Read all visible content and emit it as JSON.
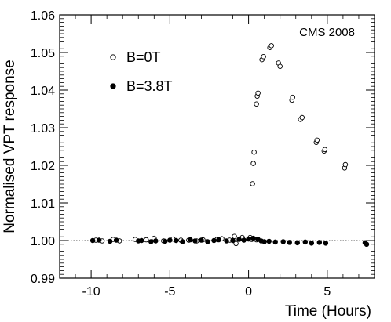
{
  "chart_data": {
    "type": "scatter",
    "title": "",
    "xlabel": "Time (Hours)",
    "ylabel": "Normalised VPT response",
    "annotation": "CMS 2008",
    "xlim": [
      -12,
      8
    ],
    "ylim": [
      0.99,
      1.06
    ],
    "xticks": [
      -10,
      -5,
      0,
      5
    ],
    "xtick_labels": [
      "-10",
      "-5",
      "0",
      "5"
    ],
    "yticks": [
      0.99,
      1.0,
      1.01,
      1.02,
      1.03,
      1.04,
      1.05,
      1.06
    ],
    "ytick_labels": [
      "0.99",
      "1.00",
      "1.01",
      "1.02",
      "1.03",
      "1.04",
      "1.05",
      "1.06"
    ],
    "reference_line": 1.0,
    "grid": false,
    "legend_position": "upper-left",
    "series": [
      {
        "name": "B=0T",
        "marker": "open-circle",
        "points": [
          [
            -9.7,
            1.0001
          ],
          [
            -9.3,
            0.9999
          ],
          [
            -8.6,
            1.0003
          ],
          [
            -8.2,
            0.9999
          ],
          [
            -7.2,
            1.0003
          ],
          [
            -6.5,
            1.0002
          ],
          [
            -6.0,
            1.0006
          ],
          [
            -5.4,
            0.9999
          ],
          [
            -4.8,
            1.0004
          ],
          [
            -4.3,
            1.0001
          ],
          [
            -3.8,
            1.0001
          ],
          [
            -3.3,
            0.9999
          ],
          [
            -2.9,
            1.0002
          ],
          [
            -2.0,
            1.0003
          ],
          [
            -1.7,
            1.0005
          ],
          [
            -1.2,
            1.0001
          ],
          [
            -0.9,
            1.0011
          ],
          [
            -0.4,
            1.0008
          ],
          [
            0.1,
            1.0008
          ],
          [
            0.5,
            1.0002
          ],
          [
            -0.8,
            0.9992
          ],
          [
            0.2,
            1.0003
          ],
          [
            0.25,
            1.0151
          ],
          [
            0.3,
            1.0205
          ],
          [
            0.35,
            1.0235
          ],
          [
            0.5,
            1.0363
          ],
          [
            0.55,
            1.0384
          ],
          [
            0.6,
            1.0392
          ],
          [
            0.85,
            1.0481
          ],
          [
            0.95,
            1.0489
          ],
          [
            1.35,
            1.0513
          ],
          [
            1.45,
            1.0518
          ],
          [
            1.9,
            1.0472
          ],
          [
            2.0,
            1.0463
          ],
          [
            2.75,
            1.0373
          ],
          [
            2.8,
            1.0381
          ],
          [
            3.3,
            1.0322
          ],
          [
            3.4,
            1.0327
          ],
          [
            4.3,
            1.0261
          ],
          [
            4.35,
            1.0267
          ],
          [
            4.8,
            1.0238
          ],
          [
            4.85,
            1.0242
          ],
          [
            6.1,
            1.0193
          ],
          [
            6.15,
            1.0202
          ]
        ]
      },
      {
        "name": "B=3.8T",
        "marker": "filled-circle",
        "points": [
          [
            -9.9,
            1.0
          ],
          [
            -9.5,
            1.0001
          ],
          [
            -8.8,
            0.9998
          ],
          [
            -8.4,
            1.0001
          ],
          [
            -7.0,
            0.9999
          ],
          [
            -6.8,
            1.0
          ],
          [
            -6.2,
            0.9997
          ],
          [
            -5.9,
            0.9999
          ],
          [
            -5.3,
            0.9998
          ],
          [
            -5.0,
            1.0001
          ],
          [
            -4.6,
            1.0
          ],
          [
            -4.2,
            0.9997
          ],
          [
            -3.7,
            1.0002
          ],
          [
            -3.4,
            0.9999
          ],
          [
            -3.0,
            1.0001
          ],
          [
            -2.6,
            0.9997
          ],
          [
            -2.2,
            1.0
          ],
          [
            -1.9,
            1.0002
          ],
          [
            -1.4,
            0.9999
          ],
          [
            -1.0,
            1.0
          ],
          [
            -0.6,
            1.0003
          ],
          [
            -0.3,
            1.0001
          ],
          [
            0.0,
            1.0004
          ],
          [
            0.3,
            1.0006
          ],
          [
            0.6,
            1.0003
          ],
          [
            0.8,
            0.9999
          ],
          [
            1.0,
            0.9997
          ],
          [
            1.3,
            0.9998
          ],
          [
            1.7,
            0.9996
          ],
          [
            2.2,
            0.9997
          ],
          [
            2.6,
            0.9995
          ],
          [
            3.1,
            0.9994
          ],
          [
            3.6,
            0.9996
          ],
          [
            4.0,
            0.9993
          ],
          [
            4.5,
            0.9995
          ],
          [
            4.9,
            0.9993
          ],
          [
            7.4,
            0.9994
          ],
          [
            7.5,
            0.999
          ]
        ]
      }
    ]
  }
}
